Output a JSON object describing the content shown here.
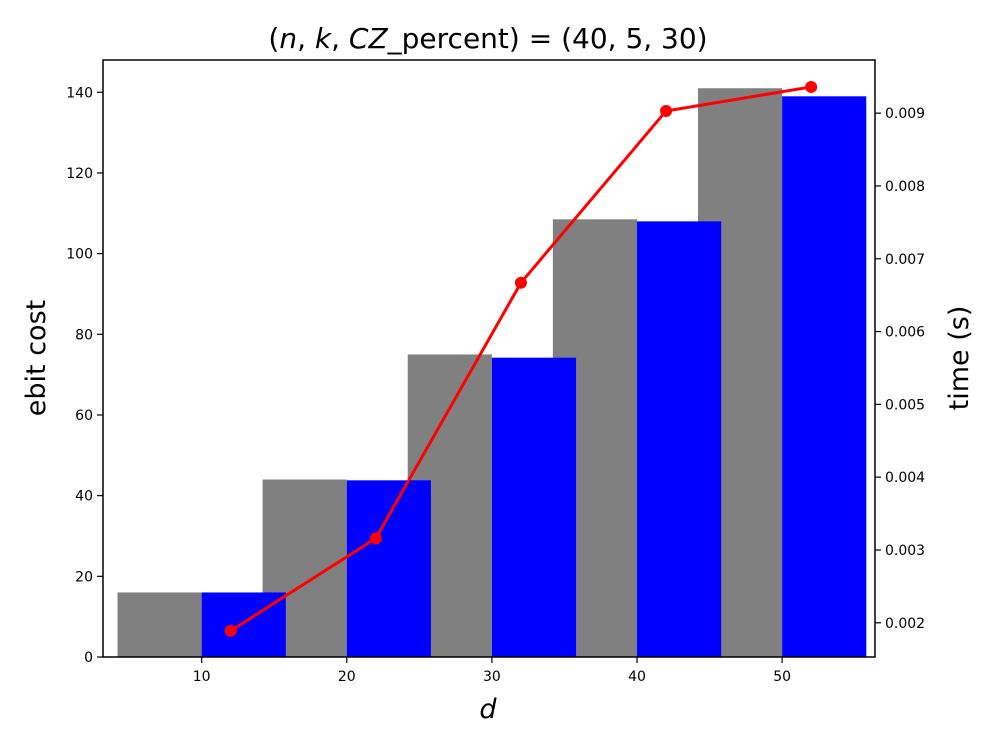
{
  "chart_data": {
    "type": "bar",
    "title_parts": {
      "open": "(",
      "n": "n",
      "sep1": ", ",
      "k": "k",
      "sep2": ", ",
      "cz": "CZ",
      "rest": "_percent) = (40, 5, 30)"
    },
    "xlabel": "d",
    "ylabel": "ebit cost",
    "y2label": "time (s)",
    "categories": [
      10,
      20,
      30,
      40,
      50
    ],
    "ylim": [
      0,
      148
    ],
    "y2lim": [
      0.00153,
      0.00973
    ],
    "yticks": [
      0,
      20,
      40,
      60,
      80,
      100,
      120,
      140
    ],
    "y2ticks": [
      0.002,
      0.003,
      0.004,
      0.005,
      0.006,
      0.007,
      0.008,
      0.009
    ],
    "y2tick_labels": [
      "0.002",
      "0.003",
      "0.004",
      "0.005",
      "0.006",
      "0.007",
      "0.008",
      "0.009"
    ],
    "series": [
      {
        "color": "#808080",
        "values": [
          16,
          44,
          75,
          108.5,
          141
        ],
        "axis": "left"
      },
      {
        "color": "#0000ff",
        "values": [
          16,
          43.8,
          74.2,
          108,
          139
        ],
        "axis": "left"
      }
    ],
    "line_series": {
      "color": "#ff0000",
      "x": [
        12,
        22,
        32,
        42,
        52
      ],
      "values": [
        0.00189,
        0.00316,
        0.00667,
        0.00903,
        0.00936
      ],
      "axis": "right"
    },
    "grid": false,
    "legend": false
  }
}
